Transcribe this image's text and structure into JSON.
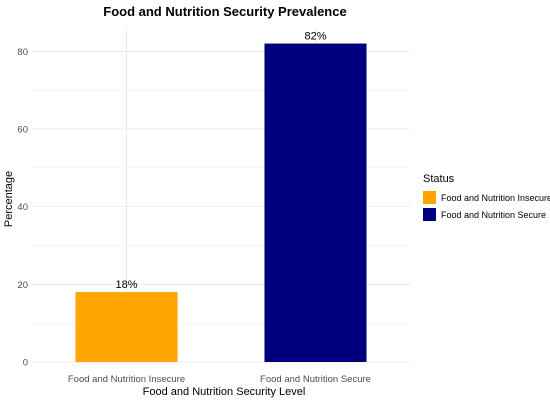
{
  "chart_data": {
    "type": "bar",
    "title": "Food and Nutrition Security Prevalence",
    "xlabel": "Food and Nutrition Security Level",
    "ylabel": "Percentage",
    "categories": [
      "Food and Nutrition Insecure",
      "Food and Nutrition Secure"
    ],
    "values": [
      18,
      82
    ],
    "value_labels": [
      "18%",
      "82%"
    ],
    "colors": [
      "#FFA500",
      "#00007F"
    ],
    "ylim": [
      0,
      86
    ],
    "yticks": [
      0,
      20,
      40,
      60,
      80
    ],
    "grid": true,
    "legend": {
      "title": "Status",
      "position": "right",
      "entries": [
        "Food and Nutrition Insecure",
        "Food and Nutrition Secure"
      ]
    }
  }
}
